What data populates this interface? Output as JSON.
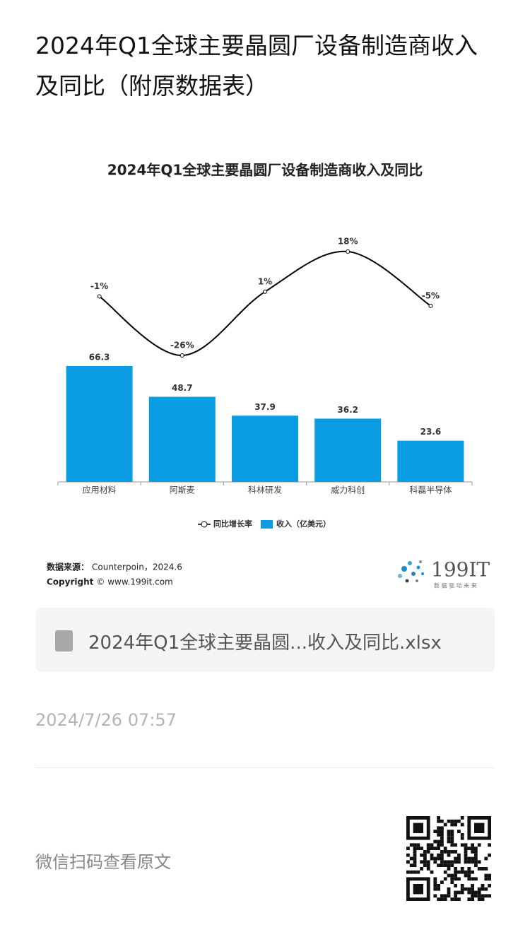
{
  "header": {
    "title": "2024年Q1全球主要晶圆厂设备制造商收入及同比（附原数据表）"
  },
  "chart_data": {
    "type": "combo",
    "title": "2024年Q1全球主要晶圆厂设备制造商收入及同比",
    "categories": [
      "应用材料",
      "阿斯麦",
      "科林研发",
      "威力科创",
      "科磊半导体"
    ],
    "series": [
      {
        "name": "同比增长率",
        "type": "line",
        "color": "#000000",
        "values": [
          -1,
          -26,
          1,
          18,
          -5
        ],
        "value_labels": [
          "-1%",
          "-26%",
          "1%",
          "18%",
          "-5%"
        ]
      },
      {
        "name": "收入（亿美元）",
        "type": "bar",
        "color": "#0a9de4",
        "values": [
          66.3,
          48.7,
          37.9,
          36.2,
          23.6
        ]
      }
    ],
    "source_label": "数据来源：",
    "source": "Counterpoin，2024.6",
    "copyright_label": "Copyright",
    "copyright": "© www.199it.com",
    "logo": "199IT",
    "logo_tagline": "数 据 驱 动 未 来"
  },
  "attachment": {
    "filename": "2024年Q1全球主要晶圆...收入及同比.xlsx"
  },
  "timestamp": "2024/7/26 07:57",
  "qr_caption": "微信扫码查看原文"
}
